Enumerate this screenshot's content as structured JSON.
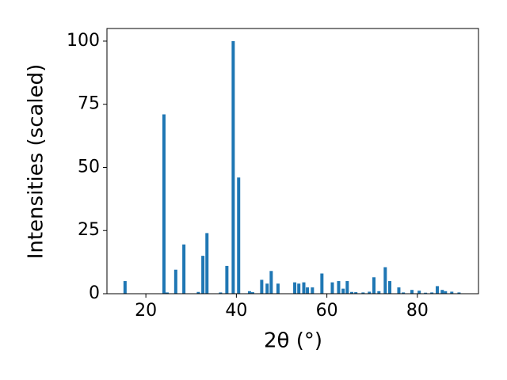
{
  "chart_data": {
    "type": "bar",
    "xlabel": "2θ (°)",
    "ylabel": "Intensities (scaled)",
    "color": "#1f77b4",
    "x": [
      15.4,
      24.0,
      24.7,
      26.6,
      28.4,
      31.6,
      32.6,
      33.5,
      36.5,
      37.9,
      39.3,
      40.5,
      42.9,
      43.6,
      45.6,
      46.8,
      47.7,
      49.2,
      52.9,
      53.8,
      54.9,
      55.7,
      56.8,
      58.9,
      61.2,
      62.6,
      63.6,
      64.5,
      65.5,
      66.4,
      68.0,
      69.4,
      70.4,
      71.5,
      72.9,
      73.9,
      75.9,
      76.9,
      78.8,
      80.4,
      81.8,
      83.2,
      84.4,
      85.5,
      86.2,
      87.6,
      89.2
    ],
    "values": [
      5,
      71,
      0.5,
      9.5,
      19.5,
      0.7,
      15,
      24,
      0.5,
      11,
      100,
      46,
      1,
      0.6,
      5.5,
      4,
      9,
      4,
      4.5,
      4,
      4.5,
      2.5,
      2.5,
      8,
      4.5,
      5,
      2,
      5,
      0.7,
      0.6,
      0.5,
      0.8,
      6.5,
      1,
      10.5,
      5,
      2.5,
      0.5,
      1.5,
      1.2,
      0.4,
      0.5,
      3,
      1.5,
      1,
      0.8,
      0.5
    ],
    "xlim": [
      11.4,
      93.5
    ],
    "xticks": [
      20,
      40,
      60,
      80
    ],
    "ylim": [
      0,
      105
    ],
    "yticks": [
      0,
      25,
      50,
      75,
      100
    ],
    "grid": false
  }
}
